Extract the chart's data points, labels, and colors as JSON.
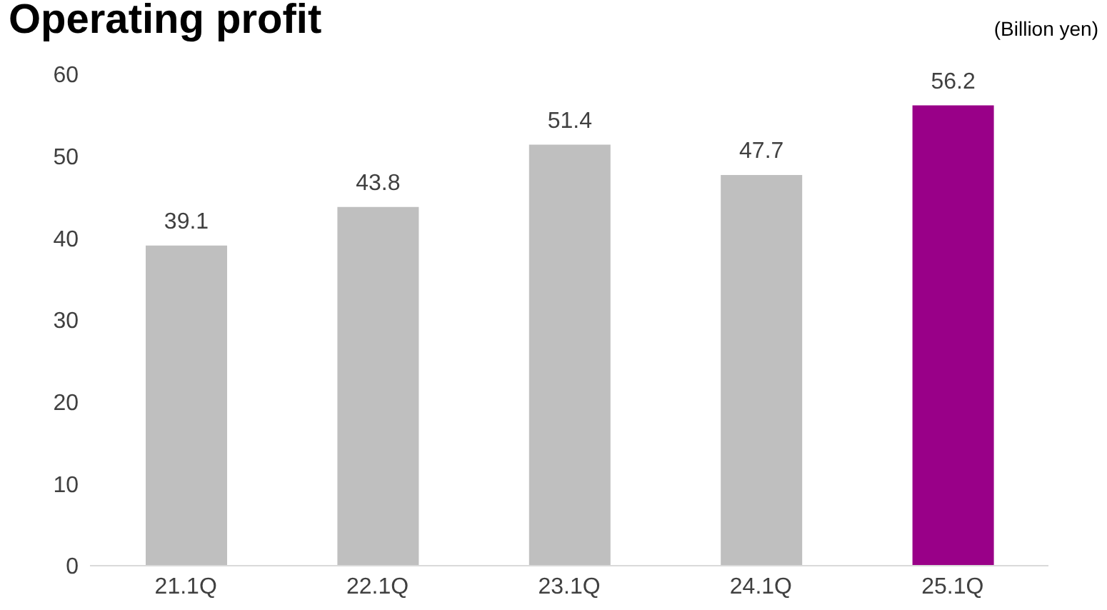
{
  "chart_data": {
    "type": "bar",
    "title": "Operating profit",
    "annotations": [
      "(Billion yen)"
    ],
    "categories": [
      "21.1Q",
      "22.1Q",
      "23.1Q",
      "24.1Q",
      "25.1Q"
    ],
    "values": [
      39.1,
      43.8,
      51.4,
      47.7,
      56.2
    ],
    "colors": [
      "#bfbfbf",
      "#bfbfbf",
      "#bfbfbf",
      "#bfbfbf",
      "#990088"
    ],
    "ylim": [
      0,
      60
    ],
    "yticks": [
      0,
      10,
      20,
      30,
      40,
      50,
      60
    ],
    "grid": false,
    "data_labels": true
  }
}
